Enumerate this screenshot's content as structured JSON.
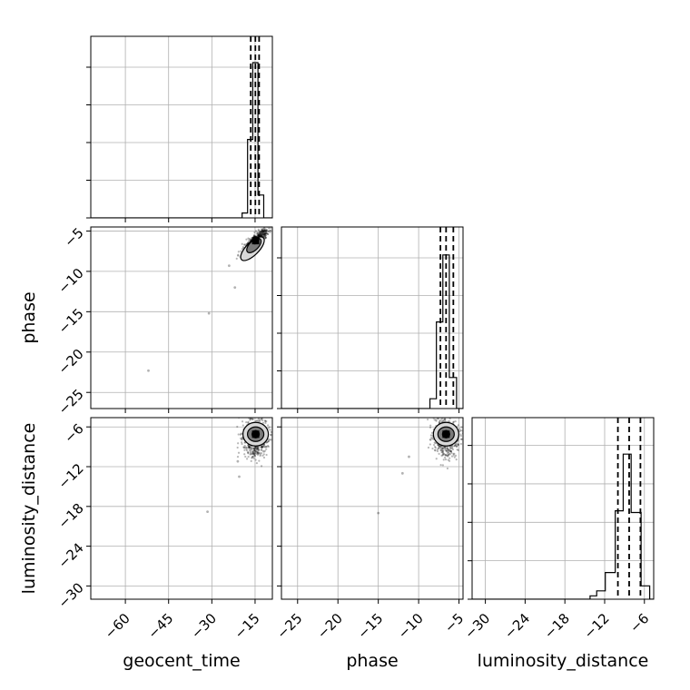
{
  "chart_data": {
    "type": "corner",
    "grid": true,
    "parameters": [
      {
        "name": "geocent_time",
        "range": [
          -72,
          -9
        ],
        "ticks": [
          -60,
          -45,
          -30,
          -15
        ]
      },
      {
        "name": "phase",
        "range": [
          -27,
          -4.5
        ],
        "ticks": [
          -25,
          -20,
          -15,
          -10,
          -5
        ]
      },
      {
        "name": "luminosity_distance",
        "range": [
          -32,
          -4.6
        ],
        "ticks": [
          -30,
          -24,
          -18,
          -12,
          -6
        ]
      }
    ],
    "histograms": [
      {
        "param": "geocent_time",
        "bin_edges": [
          -72,
          -19.5,
          -17.6,
          -15.8,
          -14,
          -12,
          -9
        ],
        "counts": [
          0,
          0.03,
          0.48,
          0.95,
          0.14,
          0
        ],
        "ymax": 1.0,
        "quantiles": [
          -16.5,
          -14.9,
          -13.6
        ]
      },
      {
        "param": "phase",
        "bin_edges": [
          -27,
          -8.6,
          -7.8,
          -7.0,
          -6.2,
          -5.3,
          -4.5
        ],
        "counts": [
          0,
          0.06,
          0.53,
          0.94,
          0.19,
          0
        ],
        "ymax": 1.0,
        "quantiles": [
          -7.3,
          -6.6,
          -5.7
        ]
      },
      {
        "param": "luminosity_distance",
        "bin_edges": [
          -32,
          -14.2,
          -13.2,
          -11.9,
          -10.4,
          -9.2,
          -8.0,
          -6.5,
          -5.2,
          -4.6
        ],
        "counts": [
          0,
          0.02,
          0.05,
          0.16,
          0.53,
          0.87,
          0.52,
          0.08,
          0
        ],
        "ymax": 0.98,
        "quantiles": [
          -10.0,
          -8.3,
          -6.6
        ]
      }
    ],
    "scatter_panels": [
      {
        "x": "geocent_time",
        "y": "phase",
        "core": {
          "x": -14.8,
          "y": -6.2
        },
        "contours": [
          {
            "x": -14.8,
            "y": -6.2,
            "level": 1
          },
          {
            "x": -15.4,
            "y": -6.8,
            "level": 2
          },
          {
            "x": -15.9,
            "y": -7.2,
            "level": 3
          }
        ],
        "outliers": [
          [
            -52,
            -22.3
          ],
          [
            -31,
            -15.2
          ],
          [
            -24,
            -9.3
          ],
          [
            -22,
            -12.0
          ]
        ]
      },
      {
        "x": "geocent_time",
        "y": "luminosity_distance",
        "core": {
          "x": -14.8,
          "y": -7.1
        },
        "contours": [
          {
            "x": -14.8,
            "y": -7.1,
            "level": 1
          },
          {
            "x": -14.8,
            "y": -7.1,
            "level": 2
          },
          {
            "x": -14.8,
            "y": -7.1,
            "level": 3
          }
        ],
        "outliers": [
          [
            -31.5,
            -18.8
          ],
          [
            -21.0,
            -11.2
          ],
          [
            -20.5,
            -13.5
          ]
        ]
      },
      {
        "x": "phase",
        "y": "luminosity_distance",
        "core": {
          "x": -6.6,
          "y": -7.1
        },
        "contours": [
          {
            "x": -6.6,
            "y": -7.1,
            "level": 1
          },
          {
            "x": -6.6,
            "y": -7.1,
            "level": 2
          },
          {
            "x": -6.6,
            "y": -7.1,
            "level": 3
          }
        ],
        "outliers": [
          [
            -15.0,
            -19.0
          ],
          [
            -12.0,
            -13.0
          ],
          [
            -11.2,
            -10.5
          ]
        ]
      }
    ]
  }
}
